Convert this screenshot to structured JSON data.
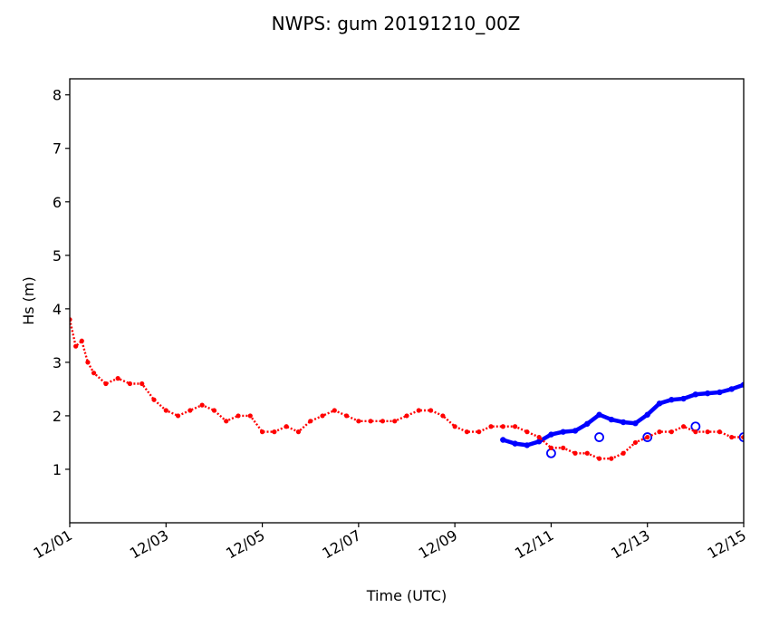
{
  "chart_data": {
    "type": "line",
    "title": "NWPS: gum 20191210_00Z",
    "xlabel": "Time (UTC)",
    "ylabel": "Hs (m)",
    "xlim": [
      "2019-12-01T00:00",
      "2019-12-15T00:00"
    ],
    "ylim": [
      0,
      8.3
    ],
    "x_ticks": [
      "12/01",
      "12/03",
      "12/05",
      "12/07",
      "12/09",
      "12/11",
      "12/13",
      "12/15"
    ],
    "y_ticks": [
      "1",
      "2",
      "3",
      "4",
      "5",
      "6",
      "7",
      "8"
    ],
    "grid": false,
    "series": [
      {
        "color": "#0000ff",
        "style": "thick line",
        "x": [
          "2019-12-10T00:00",
          "2019-12-10T06:00",
          "2019-12-10T12:00",
          "2019-12-10T18:00",
          "2019-12-11T00:00",
          "2019-12-11T06:00",
          "2019-12-11T12:00",
          "2019-12-11T18:00",
          "2019-12-12T00:00",
          "2019-12-12T06:00",
          "2019-12-12T12:00",
          "2019-12-12T18:00",
          "2019-12-13T00:00",
          "2019-12-13T06:00",
          "2019-12-13T12:00",
          "2019-12-13T18:00",
          "2019-12-14T00:00",
          "2019-12-14T06:00",
          "2019-12-14T12:00",
          "2019-12-14T18:00",
          "2019-12-15T00:00"
        ],
        "y": [
          1.55,
          1.48,
          1.45,
          1.52,
          1.65,
          1.7,
          1.72,
          1.85,
          2.02,
          1.93,
          1.88,
          1.86,
          2.02,
          2.23,
          2.3,
          2.32,
          2.4,
          2.42,
          2.44,
          2.5,
          2.58
        ]
      },
      {
        "color": "#0000ff",
        "style": "open circles",
        "x": [
          "2019-12-11T00:00",
          "2019-12-12T00:00",
          "2019-12-13T00:00",
          "2019-12-14T00:00",
          "2019-12-15T00:00"
        ],
        "y": [
          1.3,
          1.6,
          1.6,
          1.8,
          1.6
        ]
      },
      {
        "color": "#ff0000",
        "style": "dotted line",
        "x": [
          "2019-12-01T00:00",
          "2019-12-01T03:00",
          "2019-12-01T06:00",
          "2019-12-01T09:00",
          "2019-12-01T12:00",
          "2019-12-01T18:00",
          "2019-12-02T00:00",
          "2019-12-02T06:00",
          "2019-12-02T12:00",
          "2019-12-02T18:00",
          "2019-12-03T00:00",
          "2019-12-03T06:00",
          "2019-12-03T12:00",
          "2019-12-03T18:00",
          "2019-12-04T00:00",
          "2019-12-04T06:00",
          "2019-12-04T12:00",
          "2019-12-04T18:00",
          "2019-12-05T00:00",
          "2019-12-05T06:00",
          "2019-12-05T12:00",
          "2019-12-05T18:00",
          "2019-12-06T00:00",
          "2019-12-06T06:00",
          "2019-12-06T12:00",
          "2019-12-06T18:00",
          "2019-12-07T00:00",
          "2019-12-07T06:00",
          "2019-12-07T12:00",
          "2019-12-07T18:00",
          "2019-12-08T00:00",
          "2019-12-08T06:00",
          "2019-12-08T12:00",
          "2019-12-08T18:00",
          "2019-12-09T00:00",
          "2019-12-09T06:00",
          "2019-12-09T12:00",
          "2019-12-09T18:00",
          "2019-12-10T00:00",
          "2019-12-10T06:00",
          "2019-12-10T12:00",
          "2019-12-10T18:00",
          "2019-12-11T00:00",
          "2019-12-11T06:00",
          "2019-12-11T12:00",
          "2019-12-11T18:00",
          "2019-12-12T00:00",
          "2019-12-12T06:00",
          "2019-12-12T12:00",
          "2019-12-12T18:00",
          "2019-12-13T00:00",
          "2019-12-13T06:00",
          "2019-12-13T12:00",
          "2019-12-13T18:00",
          "2019-12-14T00:00",
          "2019-12-14T06:00",
          "2019-12-14T12:00",
          "2019-12-14T18:00",
          "2019-12-15T00:00"
        ],
        "y": [
          3.8,
          3.3,
          3.4,
          3.0,
          2.8,
          2.6,
          2.7,
          2.6,
          2.6,
          2.3,
          2.1,
          2.0,
          2.1,
          2.2,
          2.1,
          1.9,
          2.0,
          2.0,
          1.7,
          1.7,
          1.8,
          1.7,
          1.9,
          2.0,
          2.1,
          2.0,
          1.9,
          1.9,
          1.9,
          1.9,
          2.0,
          2.1,
          2.1,
          2.0,
          1.8,
          1.7,
          1.7,
          1.8,
          1.8,
          1.8,
          1.7,
          1.6,
          1.4,
          1.4,
          1.3,
          1.3,
          1.2,
          1.2,
          1.3,
          1.5,
          1.6,
          1.7,
          1.7,
          1.8,
          1.7,
          1.7,
          1.7,
          1.6,
          1.6
        ]
      }
    ]
  }
}
